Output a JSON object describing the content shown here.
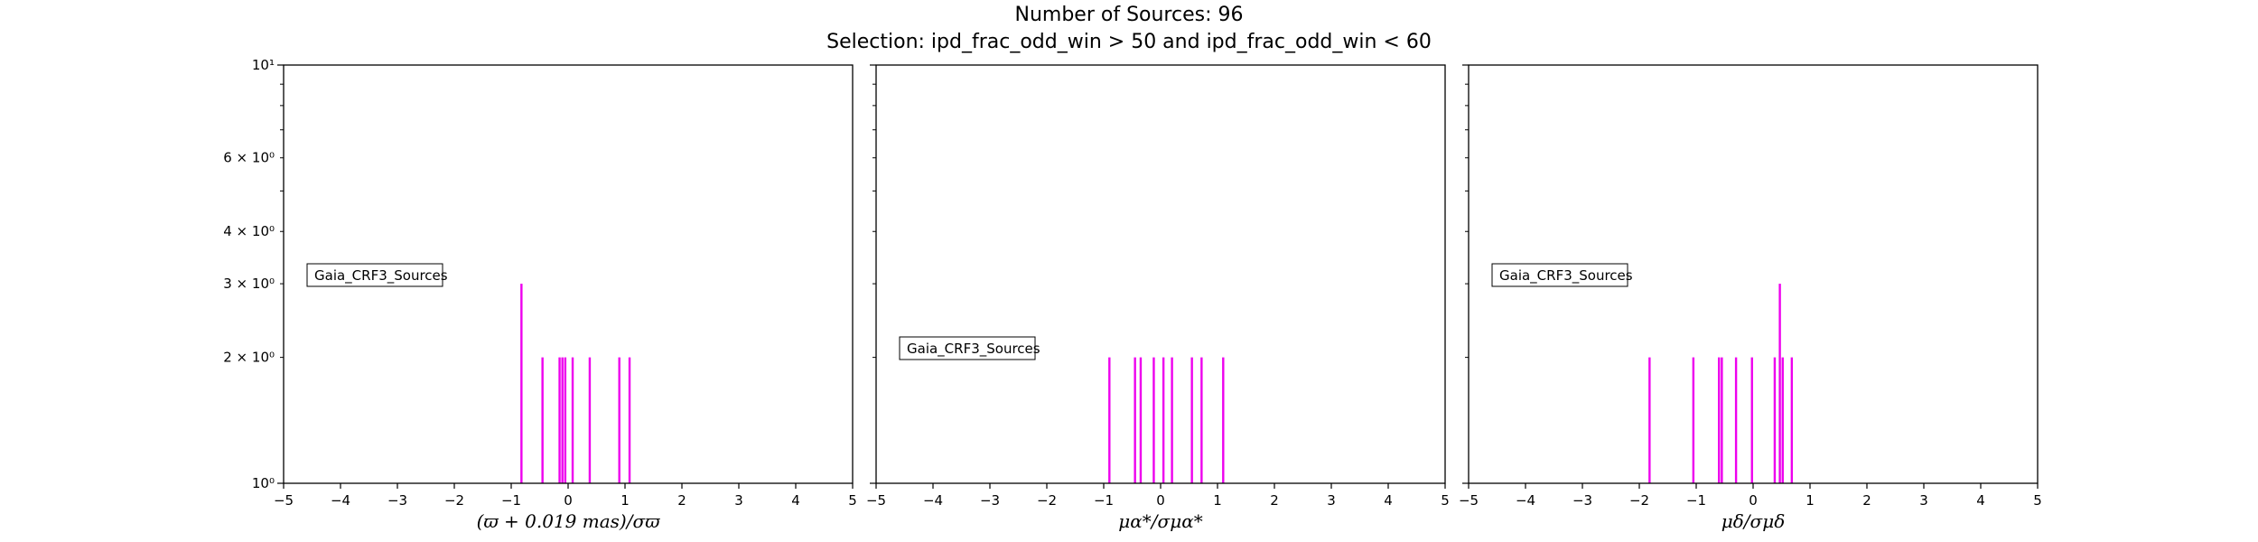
{
  "title": "Number of Sources: 96",
  "subtitle": "Selection: ipd_frac_odd_win > 50 and ipd_frac_odd_win < 60",
  "colors": {
    "bars": "#ee00ee",
    "axes": "#000000"
  },
  "chart_data": [
    {
      "type": "bar",
      "xlabel": "(ϖ + 0.019 mas)/σϖ",
      "legend": "Gaia_CRF3_Sources",
      "legend_placement": "center-left",
      "xlim": [
        -5,
        5
      ],
      "ylim": [
        1,
        10
      ],
      "yscale": "log",
      "xticks": [
        "−5",
        "−4",
        "−3",
        "−2",
        "−1",
        "0",
        "1",
        "2",
        "3",
        "4",
        "5"
      ],
      "yticks": [
        {
          "value": 1,
          "label": "10⁰"
        },
        {
          "value": 2,
          "label": "2 × 10⁰"
        },
        {
          "value": 3,
          "label": "3 × 10⁰"
        },
        {
          "value": 4,
          "label": "4 × 10⁰"
        },
        {
          "value": 6,
          "label": "6 × 10⁰"
        },
        {
          "value": 10,
          "label": "10¹"
        }
      ],
      "x": [
        -0.82,
        -0.45,
        -0.15,
        -0.1,
        -0.05,
        0.08,
        0.38,
        0.9,
        1.08
      ],
      "values": [
        3,
        2,
        2,
        2,
        2,
        2,
        2,
        2,
        2
      ]
    },
    {
      "type": "bar",
      "xlabel": "μα*/σμα*",
      "legend": "Gaia_CRF3_Sources",
      "legend_placement": "lower-left",
      "xlim": [
        -5,
        5
      ],
      "ylim": [
        1,
        10
      ],
      "yscale": "log",
      "xticks": [
        "−5",
        "−4",
        "−3",
        "−2",
        "−1",
        "0",
        "1",
        "2",
        "3",
        "4",
        "5"
      ],
      "x": [
        -0.9,
        -0.45,
        -0.35,
        -0.12,
        0.05,
        0.2,
        0.55,
        0.72,
        1.1
      ],
      "values": [
        2,
        2,
        2,
        2,
        2,
        2,
        2,
        2,
        2
      ]
    },
    {
      "type": "bar",
      "xlabel": "μδ/σμδ",
      "legend": "Gaia_CRF3_Sources",
      "legend_placement": "center-left",
      "xlim": [
        -5,
        5
      ],
      "ylim": [
        1,
        10
      ],
      "yscale": "log",
      "xticks": [
        "−5",
        "−4",
        "−3",
        "−2",
        "−1",
        "0",
        "1",
        "2",
        "3",
        "4",
        "5"
      ],
      "x": [
        -1.82,
        -1.05,
        -0.6,
        -0.55,
        -0.3,
        -0.02,
        0.38,
        0.47,
        0.52,
        0.68
      ],
      "values": [
        2,
        2,
        2,
        2,
        2,
        2,
        2,
        3,
        2,
        2
      ]
    }
  ]
}
